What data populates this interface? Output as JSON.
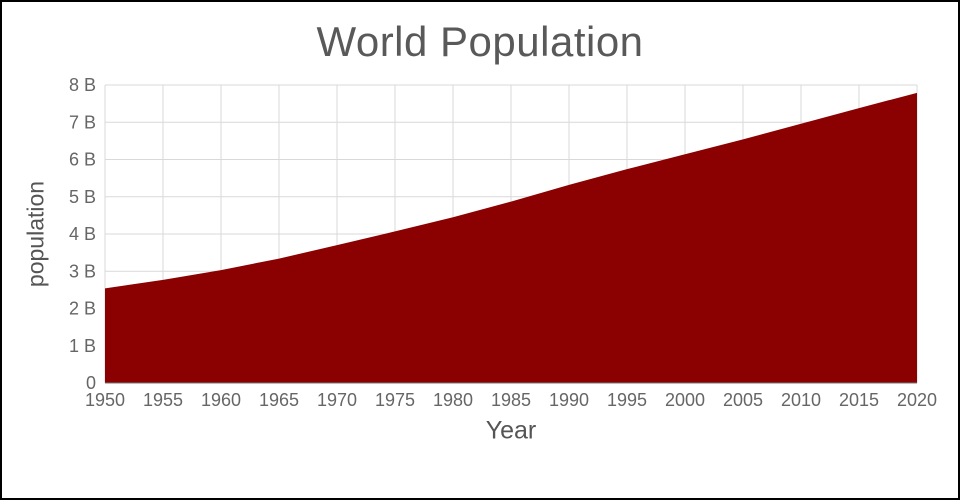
{
  "chart_data": {
    "type": "area",
    "title": "World Population",
    "xlabel": "Year",
    "ylabel": "population",
    "x": [
      1950,
      1955,
      1960,
      1965,
      1970,
      1975,
      1980,
      1985,
      1990,
      1995,
      2000,
      2005,
      2010,
      2015,
      2020
    ],
    "x_tick_labels": [
      "1950",
      "1955",
      "1960",
      "1965",
      "1970",
      "1975",
      "1980",
      "1985",
      "1990",
      "1995",
      "2000",
      "2005",
      "2010",
      "2015",
      "2020"
    ],
    "values": [
      2.54,
      2.77,
      3.03,
      3.34,
      3.7,
      4.07,
      4.45,
      4.87,
      5.32,
      5.74,
      6.14,
      6.54,
      6.96,
      7.38,
      7.79
    ],
    "y_ticks": [
      0,
      1,
      2,
      3,
      4,
      5,
      6,
      7,
      8
    ],
    "y_tick_labels": [
      "0",
      "1 B",
      "2 B",
      "3 B",
      "4 B",
      "5 B",
      "6 B",
      "7 B",
      "8 B"
    ],
    "xlim": [
      1950,
      2020
    ],
    "ylim": [
      0,
      8
    ],
    "grid": true,
    "legend": false,
    "fill_color": "#8B0000",
    "grid_color": "#d9d9d9",
    "axis_color": "#757575",
    "tick_text_color": "#666666"
  }
}
